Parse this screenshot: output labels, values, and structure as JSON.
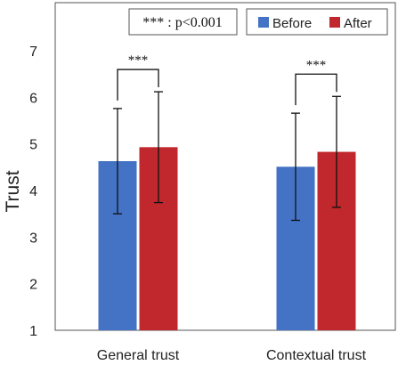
{
  "chart_data": {
    "type": "bar",
    "ylabel": "Trust",
    "ylim": [
      1,
      7
    ],
    "yticks": [
      "1",
      "2",
      "3",
      "4",
      "5",
      "6",
      "7"
    ],
    "categories": [
      "General trust",
      "Contextual trust"
    ],
    "series": [
      {
        "name": "Before",
        "color": "#4472c4",
        "values": [
          4.63,
          4.51
        ],
        "error": [
          1.13,
          1.15
        ]
      },
      {
        "name": "After",
        "color": "#c0282d",
        "values": [
          4.93,
          4.83
        ],
        "error": [
          1.19,
          1.19
        ]
      }
    ],
    "significance": [
      {
        "category": "General trust",
        "label": "***"
      },
      {
        "category": "Contextual trust",
        "label": "***"
      }
    ],
    "note": "*** : p<0.001",
    "grid": false,
    "legend": "top-right"
  }
}
